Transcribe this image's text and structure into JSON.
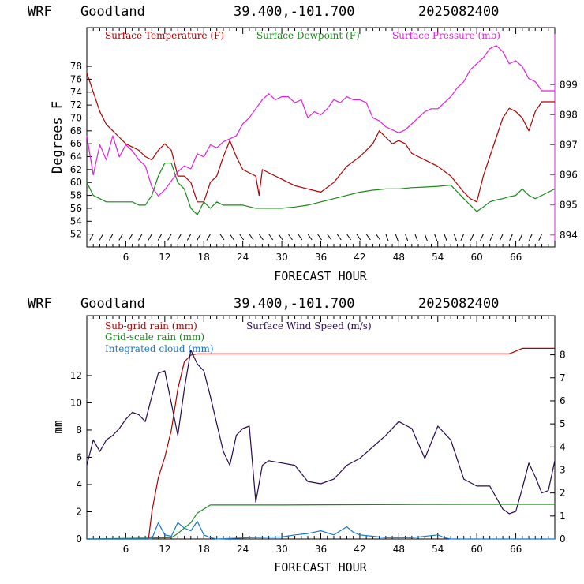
{
  "panels": [
    {
      "header": {
        "model": "WRF",
        "station": "Goodland",
        "coords": "39.400,-101.700",
        "date": "2025082400"
      },
      "xlabel": "FORECAST HOUR",
      "ylabel_left": "Degrees F",
      "legend": [
        {
          "label": "Surface Temperature (F)",
          "color": "#b00000"
        },
        {
          "label": "Surface Dewpoint (F)",
          "color": "#1a8a1a"
        },
        {
          "label": "Surface Pressure (mb)",
          "color": "#e020e0"
        }
      ]
    },
    {
      "header": {
        "model": "WRF",
        "station": "Goodland",
        "coords": "39.400,-101.700",
        "date": "2025082400"
      },
      "xlabel": "FORECAST HOUR",
      "ylabel_left": "mm",
      "legend": [
        {
          "label": "Sub-grid rain (mm)",
          "color": "#b00000"
        },
        {
          "label": "Surface Wind Speed (m/s)",
          "color": "#2a0a50"
        },
        {
          "label": "Grid-scale rain (mm)",
          "color": "#1a8a1a"
        },
        {
          "label": "Integrated cloud (mm)",
          "color": "#1878d0"
        }
      ]
    }
  ],
  "chart_data": [
    {
      "type": "line",
      "title": "WRF Goodland 39.400,-101.700 2025082400",
      "xlabel": "FORECAST HOUR",
      "ylabel": "Degrees F",
      "xlim": [
        0,
        72
      ],
      "x_ticks": [
        6,
        12,
        18,
        24,
        30,
        36,
        42,
        48,
        54,
        60,
        66
      ],
      "ylim": [
        50,
        84
      ],
      "y_ticks": [
        52,
        54,
        56,
        58,
        60,
        62,
        64,
        66,
        68,
        70,
        72,
        74,
        76,
        78
      ],
      "y2lim": [
        893.6,
        900.9
      ],
      "y2_ticks": [
        894,
        895,
        896,
        897,
        898,
        899
      ],
      "grid": false,
      "legend_position": "top",
      "series": [
        {
          "name": "Surface Temperature (F)",
          "color": "#b00000",
          "axis": "left",
          "x": [
            0,
            1,
            2,
            3,
            4,
            5,
            6,
            7,
            8,
            9,
            10,
            11,
            12,
            13,
            14,
            15,
            16,
            17,
            18,
            19,
            20,
            21,
            22,
            23,
            24,
            25,
            26,
            26.5,
            27,
            28,
            30,
            32,
            34,
            36,
            38,
            40,
            42,
            43,
            44,
            45,
            46,
            47,
            48,
            49,
            50,
            51,
            52,
            54,
            56,
            58,
            59,
            60,
            61,
            62,
            63,
            64,
            65,
            66,
            67,
            68,
            69,
            70,
            71,
            72
          ],
          "y": [
            77,
            74,
            71,
            69,
            68,
            67,
            66,
            65.5,
            65,
            64,
            63.5,
            65,
            66,
            65,
            61,
            61,
            60,
            57,
            57,
            60,
            61,
            64,
            66.5,
            64,
            62,
            61.5,
            61,
            58,
            62,
            61.5,
            60.5,
            59.5,
            59,
            58.5,
            60,
            62.5,
            64,
            65,
            66,
            68,
            67,
            66,
            66.5,
            66,
            64.5,
            64,
            63.5,
            62.5,
            61,
            58.5,
            57.5,
            57,
            61,
            64,
            67,
            70,
            71.5,
            71,
            70,
            68,
            71,
            72.5,
            72.5,
            72.5
          ]
        },
        {
          "name": "Surface Dewpoint (F)",
          "color": "#1a8a1a",
          "axis": "left",
          "x": [
            0,
            1,
            2,
            3,
            4,
            5,
            6,
            7,
            8,
            9,
            10,
            11,
            12,
            13,
            14,
            15,
            16,
            17,
            18,
            19,
            20,
            21,
            22,
            24,
            26,
            28,
            30,
            32,
            34,
            36,
            38,
            40,
            42,
            44,
            46,
            48,
            50,
            52,
            54,
            56,
            58,
            59,
            60,
            61,
            62,
            63,
            64,
            65,
            66,
            67,
            68,
            69,
            70,
            71,
            72
          ],
          "y": [
            60,
            58,
            57.5,
            57,
            57,
            57,
            57,
            57,
            56.5,
            56.5,
            58,
            61,
            63,
            63,
            60,
            59,
            56,
            55,
            57,
            56,
            57,
            56.5,
            56.5,
            56.5,
            56,
            56,
            56,
            56.2,
            56.5,
            57,
            57.5,
            58,
            58.5,
            58.8,
            59,
            59,
            59.2,
            59.3,
            59.4,
            59.6,
            57.5,
            56.5,
            55.5,
            56.2,
            57,
            57.3,
            57.5,
            57.8,
            58,
            59,
            58,
            57.5,
            58,
            58.5,
            59
          ]
        },
        {
          "name": "Surface Pressure (mb)",
          "color": "#e020e0",
          "axis": "right",
          "x": [
            0,
            1,
            2,
            3,
            4,
            5,
            6,
            7,
            8,
            9,
            10,
            11,
            12,
            13,
            14,
            15,
            16,
            17,
            18,
            19,
            20,
            21,
            22,
            23,
            24,
            25,
            26,
            27,
            28,
            29,
            30,
            31,
            32,
            33,
            34,
            35,
            36,
            37,
            38,
            39,
            40,
            41,
            42,
            43,
            44,
            45,
            46,
            47,
            48,
            49,
            50,
            51,
            52,
            53,
            54,
            55,
            56,
            57,
            58,
            59,
            60,
            61,
            62,
            63,
            64,
            65,
            66,
            67,
            68,
            69,
            70,
            71,
            72
          ],
          "y": [
            897.3,
            896,
            897,
            896.5,
            897.3,
            896.6,
            897,
            896.8,
            896.5,
            896.3,
            895.6,
            895.3,
            895.5,
            895.8,
            896.1,
            896.3,
            896.2,
            896.7,
            896.6,
            897,
            896.9,
            897.1,
            897.2,
            897.3,
            897.7,
            897.9,
            898.2,
            898.5,
            898.7,
            898.5,
            898.6,
            898.6,
            898.4,
            898.5,
            897.9,
            898.1,
            898,
            898.2,
            898.5,
            898.4,
            898.6,
            898.5,
            898.5,
            898.4,
            897.9,
            897.8,
            897.6,
            897.5,
            897.4,
            897.5,
            897.7,
            897.9,
            898.1,
            898.2,
            898.2,
            898.4,
            898.6,
            898.9,
            899.1,
            899.5,
            899.7,
            899.9,
            900.2,
            900.3,
            900.1,
            899.7,
            899.8,
            899.6,
            899.2,
            899.1,
            898.8,
            898.8,
            898.8
          ]
        }
      ],
      "wind_barbs": {
        "x_start": 1,
        "x_end": 71,
        "y": 52
      }
    },
    {
      "type": "line",
      "title": "WRF Goodland 39.400,-101.700 2025082400",
      "xlabel": "FORECAST HOUR",
      "ylabel": "mm",
      "xlim": [
        0,
        72
      ],
      "x_ticks": [
        6,
        12,
        18,
        24,
        30,
        36,
        42,
        48,
        54,
        60,
        66
      ],
      "ylim": [
        0,
        16.4
      ],
      "y_ticks": [
        0,
        2,
        4,
        6,
        8,
        10,
        12
      ],
      "y2lim": [
        0,
        9.7
      ],
      "y2_ticks": [
        0,
        1,
        2,
        3,
        4,
        5,
        6,
        7,
        8
      ],
      "grid": false,
      "legend_position": "top-left",
      "series": [
        {
          "name": "Sub-grid rain (mm)",
          "color": "#b00000",
          "axis": "left",
          "x": [
            0,
            9.5,
            10,
            11,
            12,
            13,
            14,
            15,
            16,
            17,
            20,
            30,
            40,
            50,
            60,
            65,
            66,
            67,
            72
          ],
          "y": [
            0,
            0,
            2,
            4.5,
            6,
            8,
            11,
            13,
            13.5,
            13.6,
            13.6,
            13.6,
            13.6,
            13.6,
            13.6,
            13.6,
            13.8,
            14,
            14
          ]
        },
        {
          "name": "Surface Wind Speed (m/s)",
          "color": "#2a0a50",
          "axis": "right",
          "x": [
            0,
            1,
            2,
            3,
            4,
            5,
            6,
            7,
            8,
            9,
            10,
            11,
            12,
            13,
            14,
            15,
            16,
            17,
            18,
            19,
            20,
            21,
            22,
            23,
            24,
            25,
            26,
            27,
            28,
            30,
            32,
            34,
            36,
            38,
            40,
            42,
            44,
            46,
            48,
            50,
            52,
            54,
            56,
            58,
            60,
            61,
            62,
            63,
            64,
            65,
            66,
            67,
            68,
            69,
            70,
            71,
            72
          ],
          "y": [
            3.2,
            4.3,
            3.8,
            4.3,
            4.5,
            4.8,
            5.2,
            5.5,
            5.4,
            5.1,
            6.2,
            7.2,
            7.3,
            5.9,
            4.5,
            6.5,
            8.2,
            7.6,
            7.3,
            6.2,
            5,
            3.8,
            3.2,
            4.5,
            4.8,
            4.9,
            1.6,
            3.2,
            3.4,
            3.3,
            3.2,
            2.5,
            2.4,
            2.6,
            3.2,
            3.5,
            4,
            4.5,
            5.1,
            4.8,
            3.5,
            4.9,
            4.3,
            2.6,
            2.3,
            2.3,
            2.3,
            1.8,
            1.3,
            1.1,
            1.2,
            2.2,
            3.3,
            2.7,
            2,
            2.1,
            3.4
          ]
        },
        {
          "name": "Grid-scale rain (mm)",
          "color": "#1a8a1a",
          "axis": "left",
          "x": [
            0,
            13,
            14,
            15,
            16,
            17,
            18,
            19,
            20,
            25,
            30,
            40,
            50,
            60,
            66,
            72
          ],
          "y": [
            0,
            0.1,
            0.4,
            0.8,
            1.2,
            1.9,
            2.2,
            2.5,
            2.5,
            2.5,
            2.5,
            2.52,
            2.54,
            2.55,
            2.55,
            2.55
          ]
        },
        {
          "name": "Integrated cloud (mm)",
          "color": "#1878d0",
          "axis": "left",
          "x": [
            0,
            10,
            11,
            12,
            13,
            14,
            15,
            16,
            17,
            18,
            19,
            20,
            25,
            30,
            32,
            34,
            36,
            38,
            40,
            41,
            42,
            44,
            46,
            50,
            54,
            55,
            56,
            72
          ],
          "y": [
            0,
            0,
            1.2,
            0.3,
            0.2,
            1.2,
            0.8,
            0.6,
            1.3,
            0.3,
            0.1,
            0,
            0.1,
            0.15,
            0.3,
            0.4,
            0.6,
            0.3,
            0.9,
            0.5,
            0.3,
            0.2,
            0.1,
            0.1,
            0.3,
            0.1,
            0,
            0
          ]
        }
      ]
    }
  ]
}
